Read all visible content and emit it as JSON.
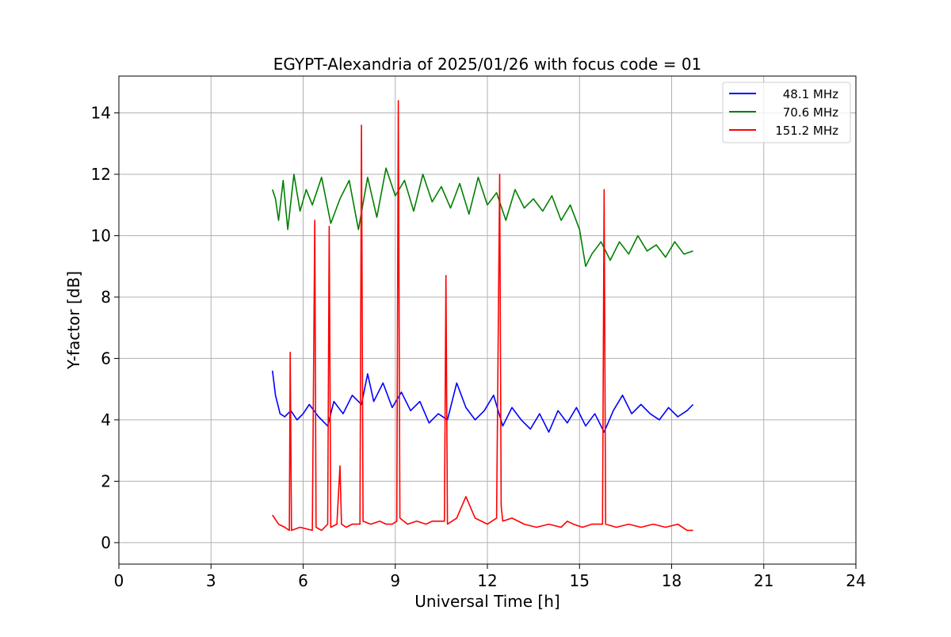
{
  "chart_data": {
    "type": "line",
    "title": "EGYPT-Alexandria of 2025/01/26 with focus code = 01",
    "xlabel": "Universal Time [h]",
    "ylabel": "Y-factor [dB]",
    "xlim": [
      0,
      24
    ],
    "ylim": [
      -0.7,
      15.2
    ],
    "xticks": [
      0,
      3,
      6,
      9,
      12,
      15,
      18,
      21,
      24
    ],
    "xtick_labels": [
      "0",
      "3",
      "6",
      "9",
      "12",
      "15",
      "18",
      "21",
      "24"
    ],
    "yticks": [
      0,
      2,
      4,
      6,
      8,
      10,
      12,
      14
    ],
    "ytick_labels": [
      "0",
      "2",
      "4",
      "6",
      "8",
      "10",
      "12",
      "14"
    ],
    "grid": true,
    "legend_position": "top-right",
    "series": [
      {
        "name": "48.1 MHz",
        "color": "#0000ff",
        "x": [
          5.0,
          5.1,
          5.25,
          5.4,
          5.6,
          5.8,
          6.0,
          6.2,
          6.5,
          6.8,
          7.0,
          7.3,
          7.6,
          7.9,
          8.1,
          8.3,
          8.6,
          8.9,
          9.2,
          9.5,
          9.8,
          10.1,
          10.4,
          10.7,
          11.0,
          11.3,
          11.6,
          11.9,
          12.2,
          12.5,
          12.8,
          13.1,
          13.4,
          13.7,
          14.0,
          14.3,
          14.6,
          14.9,
          15.2,
          15.5,
          15.8,
          16.1,
          16.4,
          16.7,
          17.0,
          17.3,
          17.6,
          17.9,
          18.2,
          18.5,
          18.7
        ],
        "values": [
          5.6,
          4.8,
          4.2,
          4.1,
          4.3,
          4.0,
          4.2,
          4.5,
          4.1,
          3.8,
          4.6,
          4.2,
          4.8,
          4.5,
          5.5,
          4.6,
          5.2,
          4.4,
          4.9,
          4.3,
          4.6,
          3.9,
          4.2,
          4.0,
          5.2,
          4.4,
          4.0,
          4.3,
          4.8,
          3.8,
          4.4,
          4.0,
          3.7,
          4.2,
          3.6,
          4.3,
          3.9,
          4.4,
          3.8,
          4.2,
          3.6,
          4.3,
          4.8,
          4.2,
          4.5,
          4.2,
          4.0,
          4.4,
          4.1,
          4.3,
          4.5
        ]
      },
      {
        "name": "70.6 MHz",
        "color": "#008000",
        "x": [
          5.0,
          5.1,
          5.2,
          5.35,
          5.5,
          5.7,
          5.9,
          6.1,
          6.3,
          6.6,
          6.9,
          7.2,
          7.5,
          7.8,
          8.1,
          8.4,
          8.7,
          9.0,
          9.3,
          9.6,
          9.9,
          10.2,
          10.5,
          10.8,
          11.1,
          11.4,
          11.7,
          12.0,
          12.3,
          12.6,
          12.9,
          13.2,
          13.5,
          13.8,
          14.1,
          14.4,
          14.7,
          15.0,
          15.2,
          15.4,
          15.7,
          16.0,
          16.3,
          16.6,
          16.9,
          17.2,
          17.5,
          17.8,
          18.1,
          18.4,
          18.7
        ],
        "values": [
          11.5,
          11.2,
          10.5,
          11.8,
          10.2,
          12.0,
          10.8,
          11.5,
          11.0,
          11.9,
          10.4,
          11.2,
          11.8,
          10.2,
          11.9,
          10.6,
          12.2,
          11.3,
          11.8,
          10.8,
          12.0,
          11.1,
          11.6,
          10.9,
          11.7,
          10.7,
          11.9,
          11.0,
          11.4,
          10.5,
          11.5,
          10.9,
          11.2,
          10.8,
          11.3,
          10.5,
          11.0,
          10.2,
          9.0,
          9.4,
          9.8,
          9.2,
          9.8,
          9.4,
          10.0,
          9.5,
          9.7,
          9.3,
          9.8,
          9.4,
          9.5
        ]
      },
      {
        "name": "151.2 MHz",
        "color": "#ff0000",
        "x": [
          5.0,
          5.2,
          5.4,
          5.55,
          5.58,
          5.62,
          5.9,
          6.3,
          6.38,
          6.42,
          6.6,
          6.8,
          6.85,
          6.9,
          7.1,
          7.2,
          7.25,
          7.4,
          7.6,
          7.85,
          7.9,
          7.95,
          8.2,
          8.5,
          8.7,
          8.9,
          9.05,
          9.1,
          9.15,
          9.4,
          9.7,
          10.0,
          10.2,
          10.6,
          10.65,
          10.7,
          11.0,
          11.3,
          11.6,
          12.0,
          12.3,
          12.4,
          12.45,
          12.5,
          12.8,
          13.2,
          13.6,
          14.0,
          14.4,
          14.6,
          14.8,
          15.1,
          15.4,
          15.75,
          15.8,
          15.85,
          16.2,
          16.6,
          17.0,
          17.4,
          17.8,
          18.2,
          18.5,
          18.7
        ],
        "values": [
          0.9,
          0.6,
          0.5,
          0.4,
          6.2,
          0.4,
          0.5,
          0.4,
          10.5,
          0.5,
          0.4,
          0.6,
          10.3,
          0.5,
          0.6,
          2.5,
          0.6,
          0.5,
          0.6,
          0.6,
          13.6,
          0.7,
          0.6,
          0.7,
          0.6,
          0.6,
          0.7,
          14.4,
          0.8,
          0.6,
          0.7,
          0.6,
          0.7,
          0.7,
          8.7,
          0.6,
          0.8,
          1.5,
          0.8,
          0.6,
          0.8,
          12.0,
          1.2,
          0.7,
          0.8,
          0.6,
          0.5,
          0.6,
          0.5,
          0.7,
          0.6,
          0.5,
          0.6,
          0.6,
          11.5,
          0.6,
          0.5,
          0.6,
          0.5,
          0.6,
          0.5,
          0.6,
          0.4,
          0.4
        ]
      }
    ]
  }
}
